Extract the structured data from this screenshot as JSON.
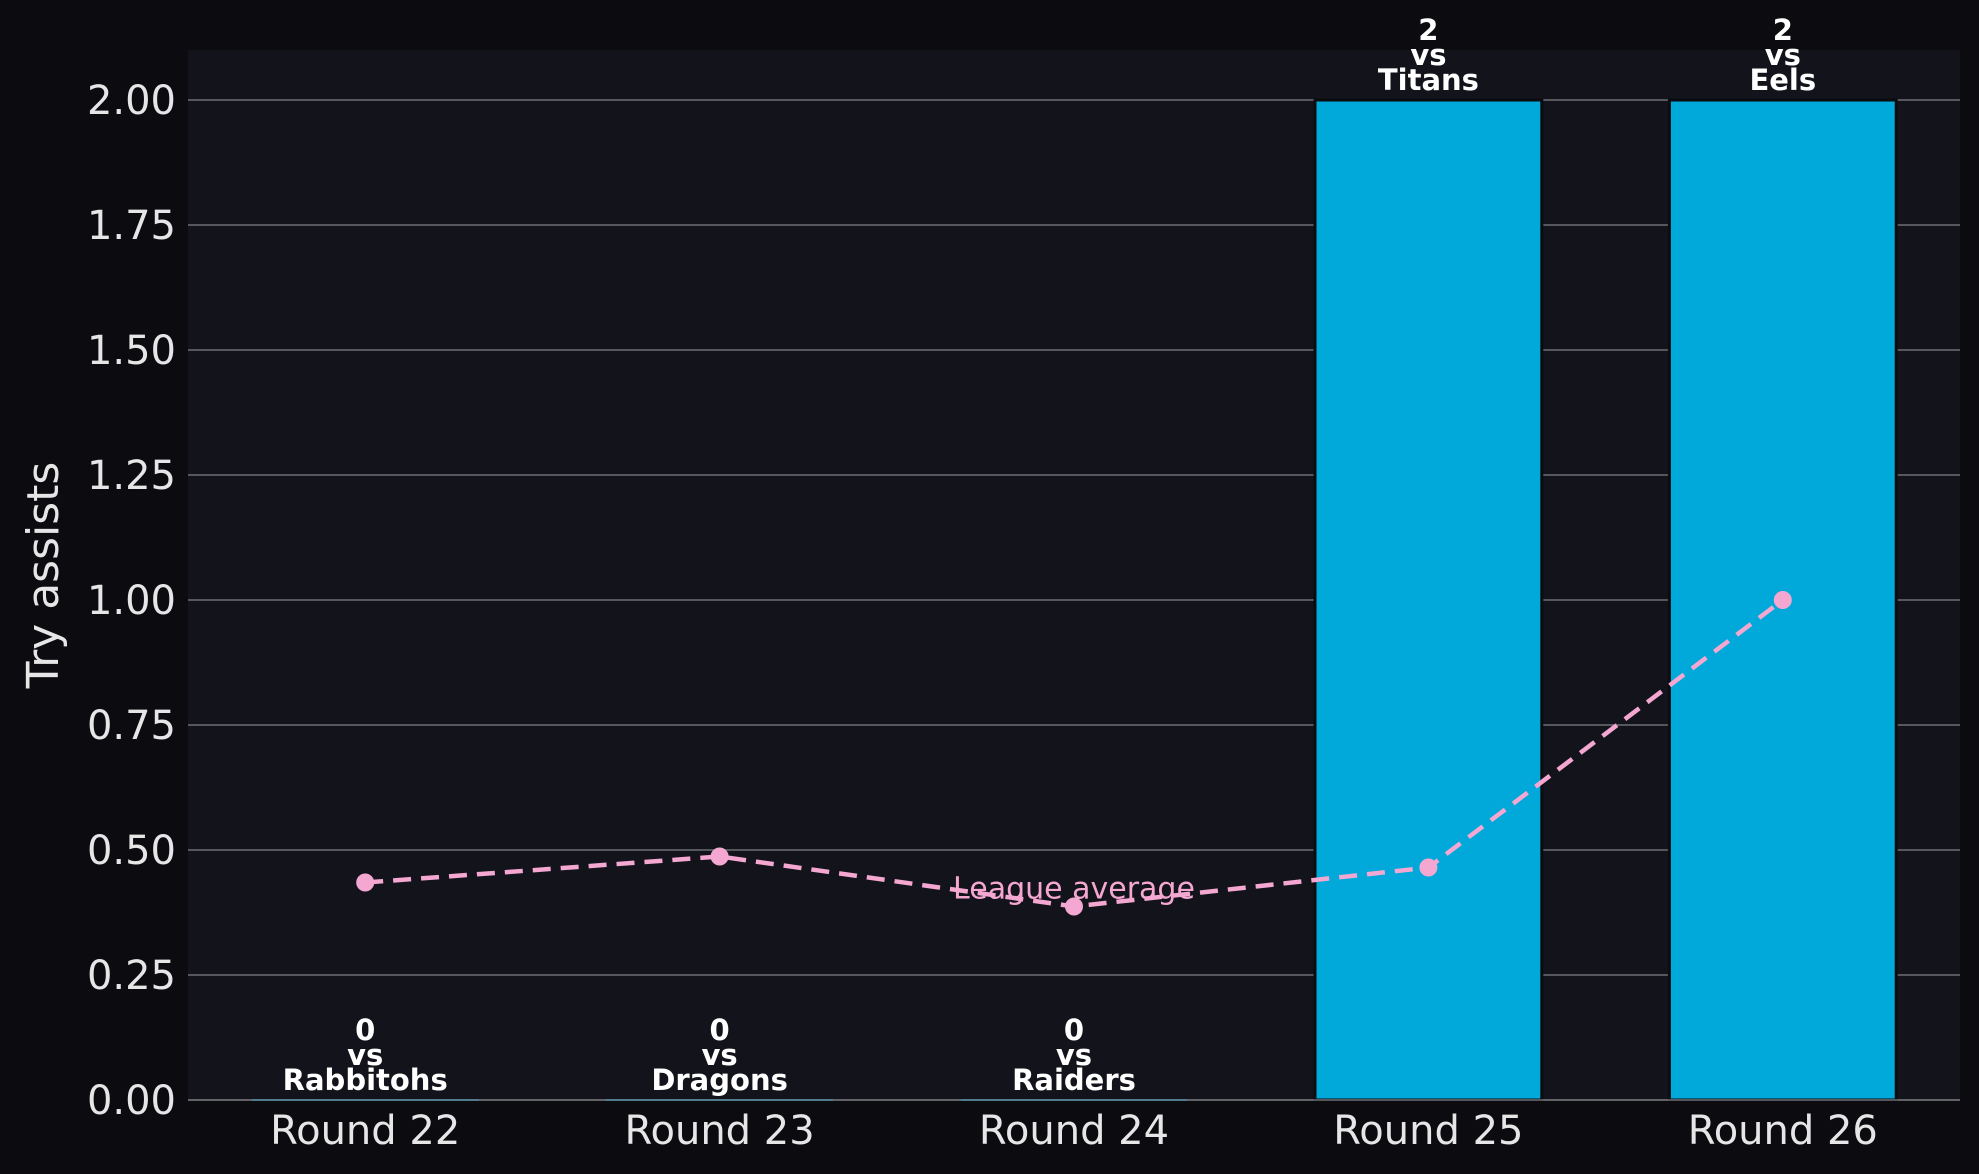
{
  "chart_data": {
    "type": "bar",
    "categories": [
      "Round 22",
      "Round 23",
      "Round 24",
      "Round 25",
      "Round 26"
    ],
    "opponents": [
      "Rabbitohs",
      "Dragons",
      "Raiders",
      "Titans",
      "Eels"
    ],
    "vs_label": "vs",
    "values": [
      0,
      0,
      0,
      2,
      2
    ],
    "line_series": {
      "values": [
        0.435,
        0.487,
        0.387,
        0.465,
        1.0
      ],
      "annotation": "League average"
    },
    "ylabel": "Try assists",
    "ylim": [
      0,
      2.1
    ],
    "yticks": [
      0,
      0.25,
      0.5,
      0.75,
      1.0,
      1.25,
      1.5,
      1.75,
      2.0
    ],
    "ytick_labels": [
      "0.00",
      "0.25",
      "0.50",
      "0.75",
      "1.00",
      "1.25",
      "1.50",
      "1.75",
      "2.00"
    ],
    "grid": true,
    "colors": {
      "background": "#0b0b10",
      "plot_background": "#13131b",
      "bar": "#00a9d9",
      "line": "#f4a7d0",
      "grid": "#6e6e75",
      "text": "#e6e6e6"
    }
  }
}
